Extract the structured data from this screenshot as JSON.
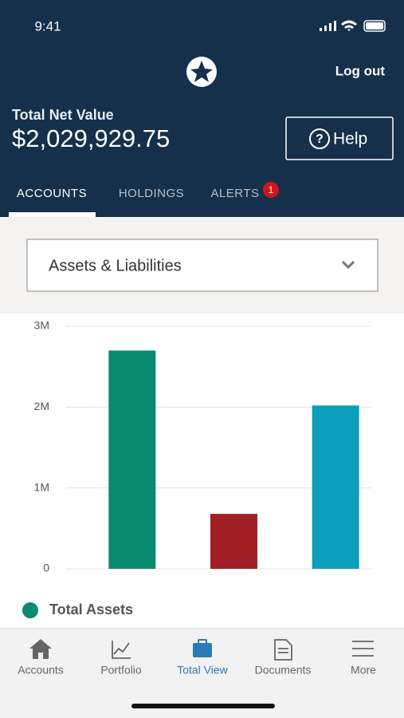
{
  "status_bar": {
    "time": "9:41"
  },
  "header": {
    "logout": "Log out",
    "net_value_label": "Total Net Value",
    "net_value": "$2,029,929.75",
    "help": "Help"
  },
  "tabs": [
    {
      "label": "ACCOUNTS"
    },
    {
      "label": "HOLDINGS"
    },
    {
      "label": "ALERTS",
      "badge": "1"
    }
  ],
  "dropdown": {
    "label": "Assets & Liabilities"
  },
  "chart_data": {
    "type": "bar",
    "categories": [
      null,
      null,
      null
    ],
    "values": [
      2700000,
      680000,
      2020000
    ],
    "colors": [
      "#0a8a6e",
      "#a11f24",
      "#0a9fba"
    ],
    "ylim": [
      0,
      3000000
    ],
    "yticks": [
      {
        "value": 0,
        "label": "0"
      },
      {
        "value": 1000000,
        "label": "1M"
      },
      {
        "value": 2000000,
        "label": "2M"
      },
      {
        "value": 3000000,
        "label": "3M"
      }
    ],
    "grid": true,
    "legend": [
      {
        "name": "Total Assets",
        "color": "#0a8a6e"
      }
    ]
  },
  "bottom_nav": [
    {
      "label": "Accounts"
    },
    {
      "label": "Portfolio"
    },
    {
      "label": "Total View",
      "active": true
    },
    {
      "label": "Documents"
    },
    {
      "label": "More"
    }
  ]
}
